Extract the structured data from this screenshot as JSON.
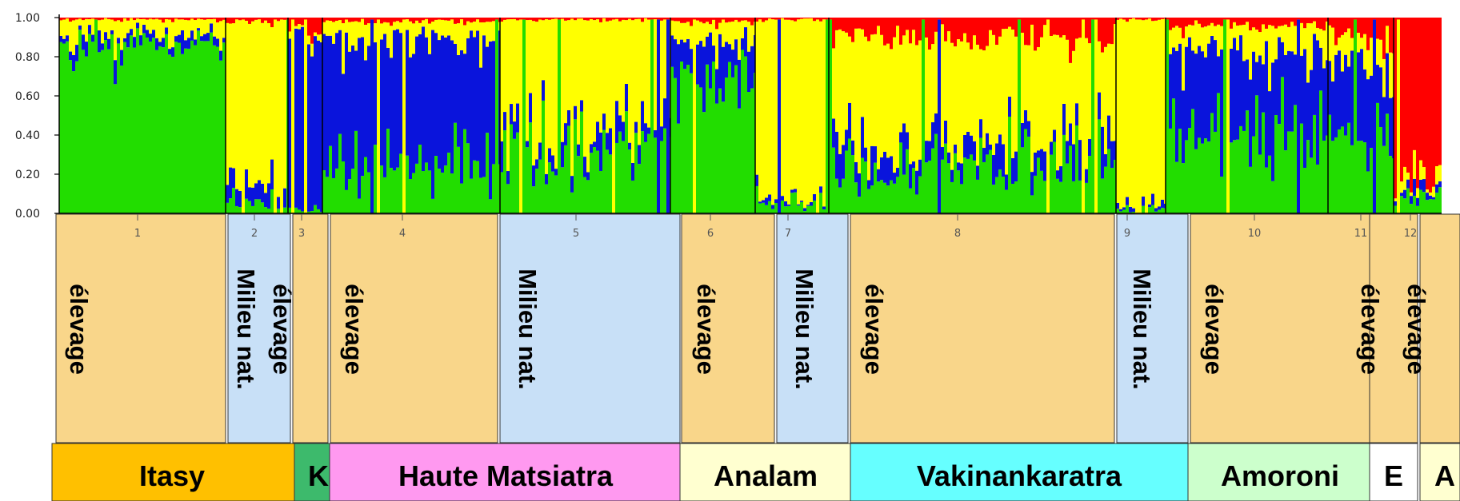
{
  "chart_data": {
    "type": "bar",
    "stacked": true,
    "ylim": [
      0,
      1
    ],
    "y_ticks": [
      "0.00",
      "0.20",
      "0.40",
      "0.60",
      "0.80",
      "1.00"
    ],
    "cluster_colors": [
      "#22dd00",
      "#0a14dc",
      "#ffff00",
      "#ff0000"
    ],
    "populations": [
      {
        "label": "1",
        "mix": [
          0.86,
          0.05,
          0.08,
          0.01
        ]
      },
      {
        "label": "2",
        "mix": [
          0.04,
          0.08,
          0.86,
          0.02
        ]
      },
      {
        "label": "3",
        "mix": [
          0.02,
          0.88,
          0.03,
          0.07
        ]
      },
      {
        "label": "4",
        "mix": [
          0.24,
          0.64,
          0.1,
          0.02
        ]
      },
      {
        "label": "5",
        "mix": [
          0.3,
          0.08,
          0.61,
          0.01
        ]
      },
      {
        "label": "6",
        "mix": [
          0.7,
          0.18,
          0.1,
          0.02
        ]
      },
      {
        "label": "7",
        "mix": [
          0.05,
          0.02,
          0.92,
          0.01
        ]
      },
      {
        "label": "8",
        "mix": [
          0.25,
          0.1,
          0.55,
          0.1
        ]
      },
      {
        "label": "9",
        "mix": [
          0.02,
          0.03,
          0.94,
          0.01
        ]
      },
      {
        "label": "10",
        "mix": [
          0.38,
          0.44,
          0.14,
          0.04
        ]
      },
      {
        "label": "11",
        "mix": [
          0.4,
          0.35,
          0.15,
          0.1
        ]
      },
      {
        "label": "12",
        "mix": [
          0.06,
          0.04,
          0.05,
          0.85
        ]
      }
    ],
    "habitats": [
      "élevage",
      "Milieu nat.",
      "élevage",
      "élevage",
      "Milieu nat.",
      "élevage",
      "Milieu nat.",
      "élevage",
      "Milieu nat.",
      "élevage",
      "élevage",
      "élevage"
    ],
    "habitat_colors": {
      "élevage": "#f9d68a",
      "Milieu nat.": "#c8e0f7"
    },
    "regions": [
      {
        "label": "Itasy",
        "color": "#ffc000"
      },
      {
        "label": "K",
        "color": "#3dba6c"
      },
      {
        "label": "Haute Matsiatra",
        "color": "#ff99f0"
      },
      {
        "label": "Analam",
        "color": "#ffffd0"
      },
      {
        "label": "Vakinankaratra",
        "color": "#66ffff"
      },
      {
        "label": "Amoroni",
        "color": "#ccffcc"
      },
      {
        "label": "E",
        "color": "#ffffff"
      },
      {
        "label": "A",
        "color": "#ffffd0"
      }
    ]
  }
}
